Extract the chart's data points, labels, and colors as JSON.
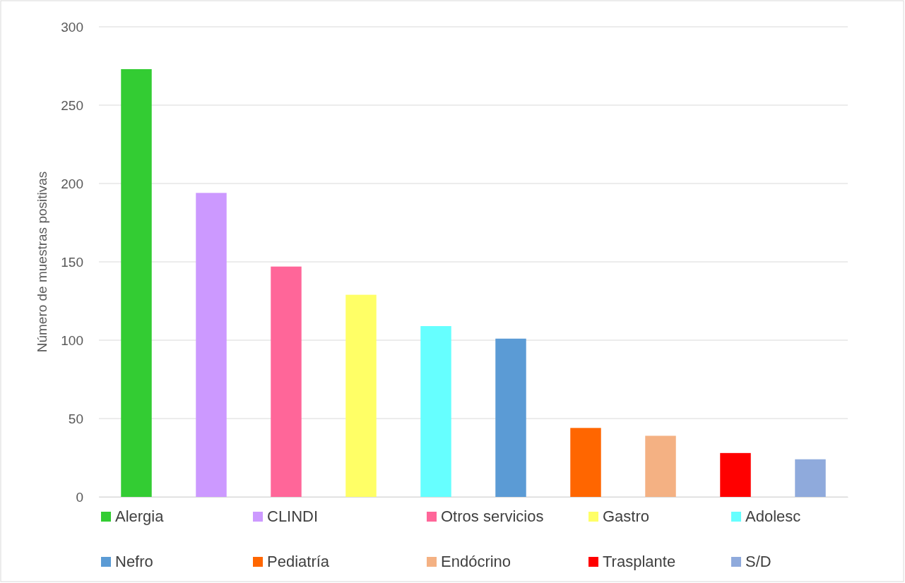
{
  "chart_data": {
    "type": "bar",
    "ylabel": "Número de muestras positivas",
    "categories": [
      null,
      null,
      null,
      null,
      null,
      null,
      null,
      null,
      null,
      null
    ],
    "series": [
      {
        "name": "Alergia",
        "color": "#33cc33",
        "values": [
          273,
          null,
          null,
          null,
          null,
          null,
          null,
          null,
          null,
          null
        ]
      },
      {
        "name": "CLINDI",
        "color": "#cc99ff",
        "values": [
          null,
          194,
          null,
          null,
          null,
          null,
          null,
          null,
          null,
          null
        ]
      },
      {
        "name": "Otros servicios",
        "color": "#ff6699",
        "values": [
          null,
          null,
          147,
          null,
          null,
          null,
          null,
          null,
          null,
          null
        ]
      },
      {
        "name": "Gastro",
        "color": "#ffff66",
        "values": [
          null,
          null,
          null,
          129,
          null,
          null,
          null,
          null,
          null,
          null
        ]
      },
      {
        "name": "Adolesc",
        "color": "#66ffff",
        "values": [
          null,
          null,
          null,
          null,
          109,
          null,
          null,
          null,
          null,
          null
        ]
      },
      {
        "name": "Nefro",
        "color": "#5b9bd5",
        "values": [
          null,
          null,
          null,
          null,
          null,
          101,
          null,
          null,
          null,
          null
        ]
      },
      {
        "name": "Pediatría",
        "color": "#ff6600",
        "values": [
          null,
          null,
          null,
          null,
          null,
          null,
          44,
          null,
          null,
          null
        ]
      },
      {
        "name": "Endócrino",
        "color": "#f4b183",
        "values": [
          null,
          null,
          null,
          null,
          null,
          null,
          null,
          39,
          null,
          null
        ]
      },
      {
        "name": "Trasplante",
        "color": "#ff0000",
        "values": [
          null,
          null,
          null,
          null,
          null,
          null,
          null,
          null,
          28,
          null
        ]
      },
      {
        "name": "S/D",
        "color": "#8faadc",
        "values": [
          null,
          null,
          null,
          null,
          null,
          null,
          null,
          null,
          null,
          24
        ]
      }
    ],
    "ylim": [
      0,
      300
    ],
    "yticks": [
      0,
      50,
      100,
      150,
      200,
      250,
      300
    ],
    "grid": "y",
    "legend": "bottom",
    "tick_labels": "y"
  }
}
